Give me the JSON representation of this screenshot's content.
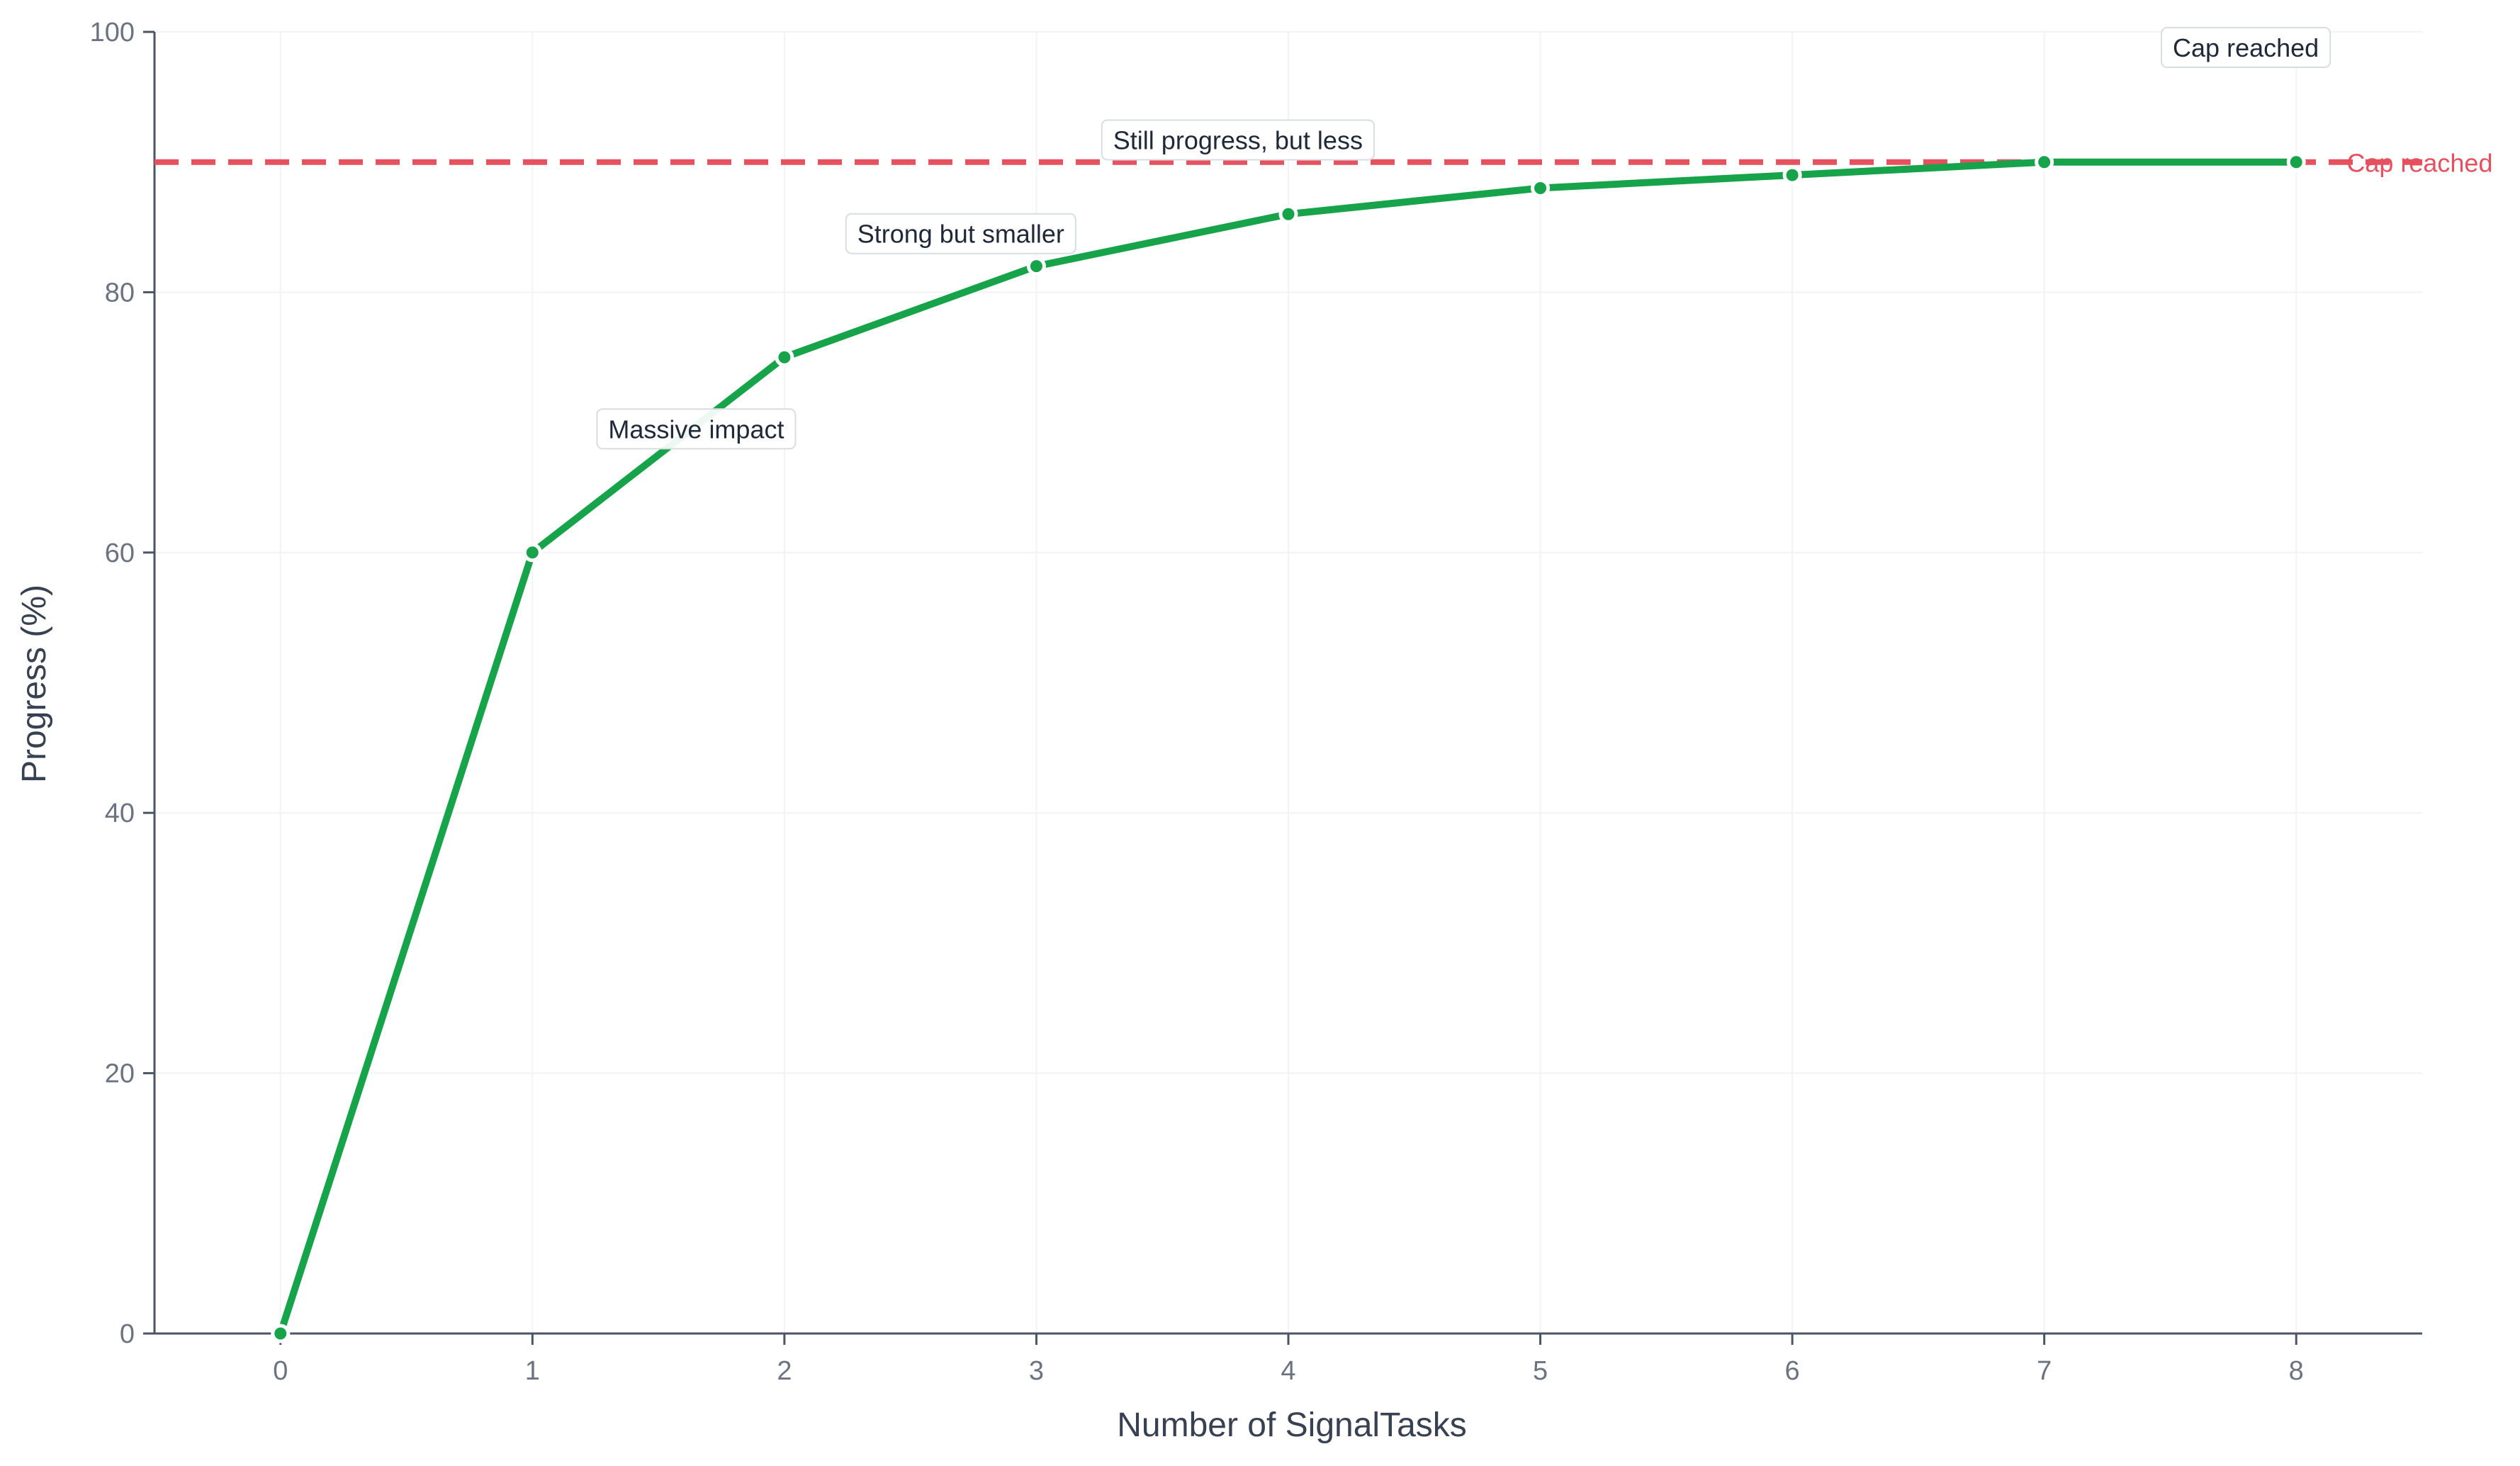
{
  "chart_data": {
    "type": "line",
    "title": "",
    "xlabel": "Number of SignalTasks",
    "ylabel": "Progress (%)",
    "x": [
      0,
      1,
      2,
      3,
      4,
      5,
      6,
      7,
      8
    ],
    "xlim": [
      -0.5,
      8.5
    ],
    "ylim": [
      0,
      100
    ],
    "x_ticks": [
      0,
      1,
      2,
      3,
      4,
      5,
      6,
      7,
      8
    ],
    "y_ticks": [
      0,
      20,
      40,
      60,
      80,
      100
    ],
    "grid": true,
    "series": [
      {
        "values": [
          0,
          60,
          75,
          82,
          86,
          88,
          89,
          90,
          90
        ],
        "color": "#16a34a"
      }
    ],
    "reference_line": {
      "y": 90,
      "label": "Cap reached",
      "color": "#e5515f",
      "style": "dashed"
    },
    "annotations": [
      {
        "text": "Massive impact",
        "x": 1.65,
        "y": 69.5
      },
      {
        "text": "Strong but smaller",
        "x": 2.7,
        "y": 84.5
      },
      {
        "text": "Still progress, but less",
        "x": 3.8,
        "y": 91.7
      },
      {
        "text": "Cap reached",
        "x": 7.8,
        "y": 98.8
      }
    ],
    "colors": {
      "axis": "#4b5563",
      "tick_text": "#6b7280",
      "label_text": "#374151",
      "grid": "#f1f3f5",
      "annotation_text": "#1f2937",
      "annotation_border": "#d8dde3"
    }
  }
}
